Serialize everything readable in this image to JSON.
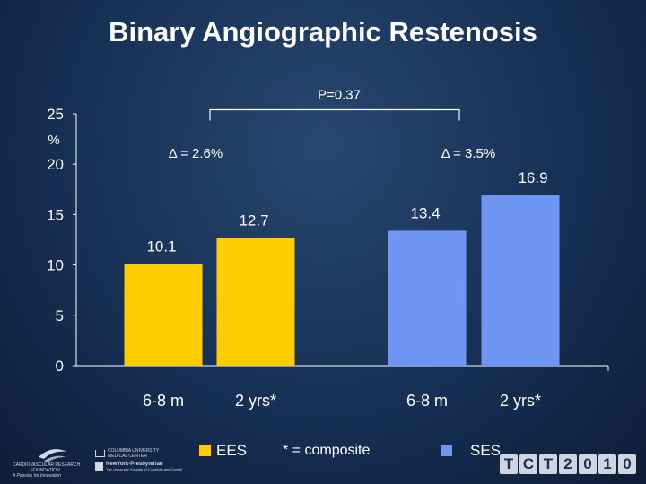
{
  "title": "Binary Angiographic Restenosis",
  "chart_data": {
    "type": "bar",
    "title": "Binary Angiographic Restenosis",
    "ylabel": "%",
    "ylim": [
      0,
      25
    ],
    "yticks": [
      0,
      5,
      10,
      15,
      20,
      25
    ],
    "categories": [
      "6-8 m",
      "2 yrs*",
      "6-8 m",
      "2 yrs*"
    ],
    "series": [
      {
        "name": "EES",
        "color": "#ffcc00",
        "values": [
          10.1,
          12.7,
          null,
          null
        ]
      },
      {
        "name": "SES",
        "color": "#6f96f2",
        "values": [
          null,
          null,
          13.4,
          16.9
        ]
      }
    ],
    "data_labels": [
      "10.1",
      "12.7",
      "13.4",
      "16.9"
    ],
    "annotations": {
      "p_value": "P=0.37",
      "delta_ees": "Δ = 2.6%",
      "delta_ses": "Δ = 3.5%"
    },
    "legend": {
      "position": "bottom",
      "ees": "EES",
      "ses": "SES",
      "note": "* = composite"
    }
  },
  "footer": {
    "crf_line1": "CARDIOVASCULAR RESEARCH",
    "crf_line2": "FOUNDATION",
    "crf_line3": "A Passion for Innovation",
    "columbia_line1": "COLUMBIA UNIVERSITY",
    "columbia_line2": "MEDICAL CENTER",
    "nyp_line1": "NewYork-Presbyterian",
    "nyp_line2": "The University Hospital of Columbia and Cornell",
    "tct": [
      "T",
      "C",
      "T",
      "2",
      "0",
      "1",
      "0"
    ]
  }
}
